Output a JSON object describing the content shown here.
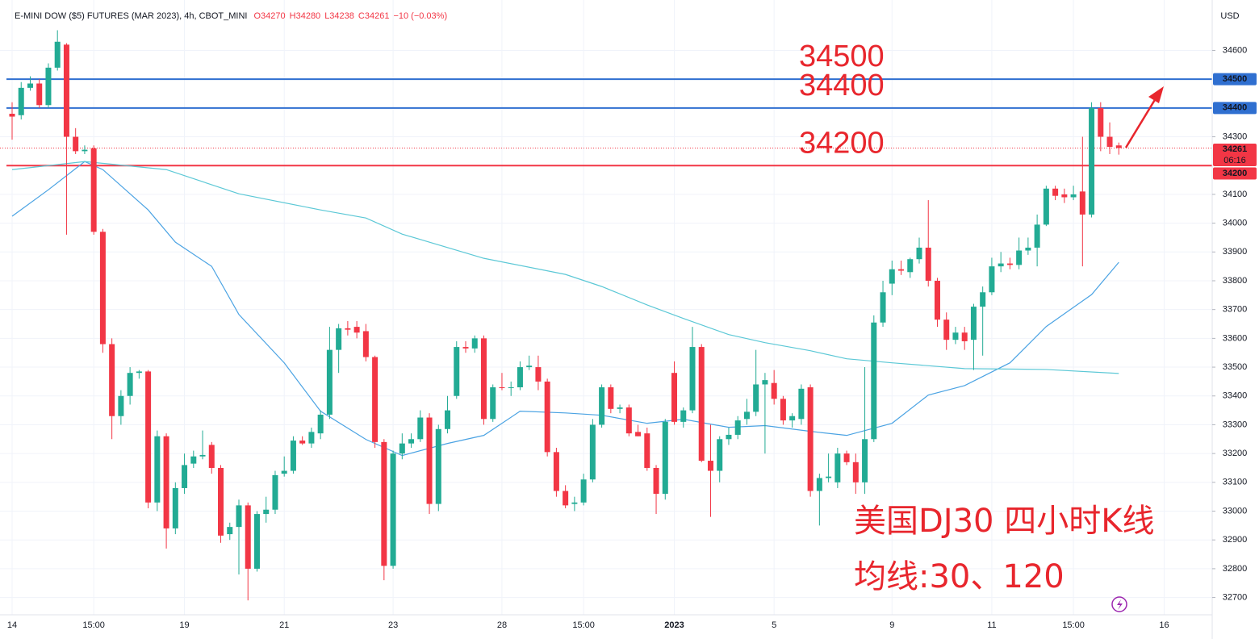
{
  "chart_data": {
    "type": "candlestick",
    "header": {
      "symbol": "E-MINI DOW ($5) FUTURES (MAR 2023), 4h, CBOT_MINI",
      "quote": [
        "O34270",
        "H34280",
        "L34238",
        "C34261",
        "−10 (−0.03%)"
      ]
    },
    "currency": "USD",
    "categories": [
      "14",
      null,
      null,
      null,
      null,
      null,
      null,
      null,
      null,
      "15:00",
      null,
      null,
      null,
      null,
      null,
      null,
      null,
      null,
      null,
      "19",
      null,
      null,
      null,
      null,
      null,
      null,
      null,
      null,
      null,
      null,
      "21",
      null,
      null,
      null,
      null,
      null,
      null,
      null,
      null,
      null,
      null,
      null,
      "23",
      null,
      null,
      null,
      null,
      null,
      null,
      null,
      null,
      null,
      null,
      null,
      "28",
      null,
      null,
      null,
      null,
      null,
      null,
      null,
      null,
      "15:00",
      null,
      null,
      null,
      null,
      null,
      null,
      null,
      null,
      null,
      "2023",
      null,
      null,
      null,
      null,
      null,
      null,
      null,
      null,
      null,
      null,
      "5",
      null,
      null,
      null,
      null,
      null,
      null,
      null,
      null,
      null,
      null,
      null,
      null,
      "9",
      null,
      null,
      null,
      null,
      null,
      null,
      null,
      null,
      null,
      null,
      "11",
      null,
      null,
      null,
      null,
      null,
      null,
      null,
      null,
      "15:00",
      null,
      null,
      null,
      null,
      null,
      null,
      null,
      null,
      null,
      "16"
    ],
    "open": [
      34380,
      34375,
      34470,
      34485,
      34410,
      34540,
      34620,
      34300,
      34250,
      34260,
      33970,
      33580,
      33330,
      33400,
      33480,
      33485,
      33030,
      33260,
      32940,
      33080,
      33165,
      33190,
      33230,
      33150,
      32920,
      32945,
      33020,
      32800,
      32990,
      33005,
      33130,
      33140,
      33245,
      33235,
      33270,
      33335,
      33560,
      33635,
      33640,
      33625,
      33535,
      33240,
      32810,
      33200,
      33235,
      33250,
      33325,
      33025,
      33285,
      33400,
      33570,
      33565,
      33600,
      33320,
      33430,
      33428,
      33430,
      33500,
      33500,
      33450,
      33205,
      33070,
      33025,
      33030,
      33110,
      33300,
      33430,
      33355,
      33360,
      33275,
      33270,
      33150,
      33060,
      33480,
      33310,
      33350,
      33570,
      33175,
      33140,
      33250,
      33265,
      33320,
      33345,
      33440,
      33445,
      33390,
      33315,
      33320,
      33430,
      33070,
      33115,
      33100,
      33200,
      33170,
      33100,
      33250,
      33655,
      33790,
      33840,
      33830,
      33875,
      33915,
      33800,
      33665,
      33595,
      33620,
      33595,
      33710,
      33760,
      33850,
      33860,
      33855,
      33905,
      33915,
      33995,
      34120,
      34100,
      34090,
      34110,
      34030,
      34400,
      34300,
      34270,
      null,
      null,
      null,
      null,
      null
    ],
    "high": [
      34420,
      34490,
      34510,
      34500,
      34555,
      34670,
      34625,
      34330,
      34270,
      34270,
      33980,
      33600,
      33420,
      33500,
      33490,
      33490,
      33280,
      33270,
      33100,
      33200,
      33210,
      33280,
      33240,
      33160,
      32960,
      33040,
      33030,
      33000,
      33050,
      33140,
      33190,
      33260,
      33260,
      33290,
      33350,
      33640,
      33650,
      33660,
      33660,
      33650,
      33540,
      33250,
      33210,
      33270,
      33270,
      33350,
      33340,
      33300,
      33400,
      33590,
      33590,
      33610,
      33610,
      33440,
      33480,
      33450,
      33520,
      33540,
      33540,
      33460,
      33220,
      33090,
      33050,
      33130,
      33320,
      33440,
      33440,
      33370,
      33370,
      33300,
      33290,
      33160,
      33320,
      33520,
      33360,
      33640,
      33580,
      33300,
      33260,
      33290,
      33330,
      33390,
      33560,
      33480,
      33490,
      33400,
      33340,
      33440,
      33440,
      33130,
      33200,
      33220,
      33210,
      33200,
      33500,
      33680,
      33800,
      33870,
      33870,
      33880,
      33950,
      34080,
      33810,
      33690,
      33640,
      33640,
      33720,
      33780,
      33880,
      33900,
      33880,
      33950,
      33950,
      34030,
      34130,
      34130,
      34120,
      34130,
      34300,
      34420,
      34420,
      34350,
      34280,
      null,
      null,
      null,
      null,
      null
    ],
    "low": [
      34290,
      34360,
      34460,
      34400,
      34400,
      34530,
      33960,
      34240,
      34240,
      33960,
      33550,
      33250,
      33300,
      33370,
      33460,
      33010,
      33000,
      32870,
      32920,
      33060,
      33150,
      33180,
      33130,
      32890,
      32900,
      32780,
      32690,
      32790,
      32960,
      32990,
      33120,
      33130,
      33230,
      33220,
      33250,
      33320,
      33480,
      33610,
      33600,
      33520,
      33220,
      32760,
      32800,
      33180,
      33220,
      33240,
      32990,
      33000,
      33270,
      33390,
      33550,
      33550,
      33300,
      33310,
      33420,
      33400,
      33420,
      33490,
      33420,
      33190,
      33050,
      33010,
      33000,
      33020,
      33100,
      33290,
      33340,
      33340,
      33260,
      33260,
      33140,
      32990,
      33040,
      33300,
      33290,
      33340,
      33170,
      32980,
      33100,
      33230,
      33250,
      33300,
      33330,
      33200,
      33370,
      33300,
      33290,
      33300,
      33050,
      32950,
      33100,
      33080,
      33160,
      33060,
      33060,
      33240,
      33640,
      33750,
      33820,
      33810,
      33860,
      33780,
      33640,
      33560,
      33580,
      33560,
      33490,
      33540,
      33750,
      33830,
      33840,
      33840,
      33890,
      33850,
      33990,
      34080,
      34070,
      34080,
      33850,
      34020,
      34250,
      34240,
      34238,
      null,
      null,
      null,
      null,
      null
    ],
    "close": [
      34370,
      34470,
      34485,
      34410,
      34540,
      34630,
      34300,
      34250,
      34255,
      33970,
      33580,
      33330,
      33400,
      33480,
      33485,
      33030,
      33260,
      32940,
      33080,
      33160,
      33190,
      33195,
      33150,
      32915,
      32945,
      33020,
      32800,
      32990,
      33005,
      33125,
      33140,
      33245,
      33235,
      33275,
      33335,
      33560,
      33635,
      33630,
      33620,
      33535,
      33240,
      32810,
      33200,
      33235,
      33250,
      33325,
      33025,
      33285,
      33350,
      33570,
      33565,
      33600,
      33320,
      33430,
      33428,
      33430,
      33500,
      33505,
      33450,
      33205,
      33070,
      33020,
      33030,
      33110,
      33300,
      33430,
      33355,
      33360,
      33270,
      33260,
      33150,
      33060,
      33310,
      33310,
      33350,
      33570,
      33175,
      33140,
      33250,
      33265,
      33315,
      33345,
      33440,
      33455,
      33390,
      33315,
      33330,
      33425,
      33070,
      33115,
      33120,
      33200,
      33170,
      33100,
      33250,
      33655,
      33760,
      33840,
      33835,
      33875,
      33915,
      33800,
      33665,
      33595,
      33620,
      33590,
      33710,
      33760,
      33850,
      33860,
      33855,
      33905,
      33915,
      33995,
      34120,
      34095,
      34090,
      34100,
      34030,
      34400,
      34300,
      34265,
      34261,
      null,
      null,
      null,
      null,
      null
    ],
    "up_color": "#22ab94",
    "down_color": "#f23645",
    "series": [
      {
        "name": "MA30",
        "color": "#4ba3e3",
        "x": [
          0,
          4,
          8,
          10,
          15,
          18,
          22,
          25,
          30,
          34,
          39,
          43,
          48,
          52,
          56,
          61,
          65,
          70,
          74,
          79,
          83,
          88,
          92,
          97,
          101,
          105,
          110,
          114,
          119,
          122
        ],
        "values": [
          34024,
          34116,
          34214,
          34186,
          34046,
          33934,
          33850,
          33683,
          33515,
          33347,
          33249,
          33193,
          33235,
          33263,
          33347,
          33341,
          33333,
          33305,
          33319,
          33291,
          33297,
          33277,
          33263,
          33305,
          33403,
          33436,
          33515,
          33641,
          33752,
          33864
        ]
      },
      {
        "name": "MA120",
        "color": "#5cc8d6",
        "x": [
          0,
          8,
          17,
          25,
          34,
          39,
          43,
          52,
          61,
          65,
          70,
          74,
          79,
          83,
          88,
          92,
          97,
          105,
          114,
          122
        ],
        "values": [
          34186,
          34214,
          34186,
          34102,
          34046,
          34018,
          33962,
          33878,
          33822,
          33780,
          33716,
          33669,
          33613,
          33585,
          33557,
          33529,
          33515,
          33495,
          33492,
          33478
        ]
      }
    ],
    "hlines": [
      {
        "value": 34500,
        "color": "#2f6fd0"
      },
      {
        "value": 34400,
        "color": "#2f6fd0"
      },
      {
        "value": 34200,
        "color": "#f23645"
      }
    ],
    "last_price": 34261,
    "countdown": "06:16",
    "annotations": [
      "美国DJ30 四小时K线",
      "均线:30、120"
    ],
    "ylim": [
      32640,
      34775
    ],
    "yticks": [
      32700,
      32800,
      32900,
      33000,
      33100,
      33200,
      33300,
      33400,
      33500,
      33600,
      33700,
      33800,
      33900,
      34000,
      34100,
      34300,
      34600
    ],
    "grid": true
  }
}
